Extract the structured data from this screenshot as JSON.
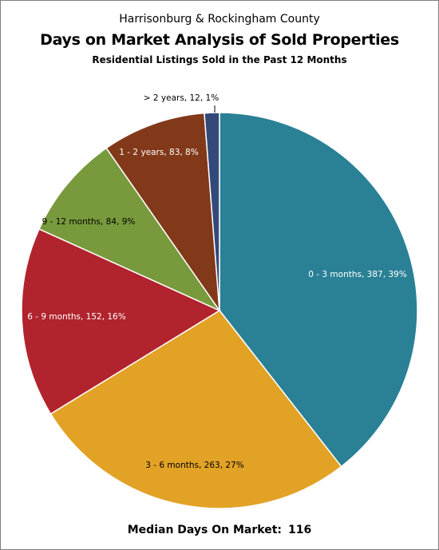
{
  "chart_data": {
    "type": "pie",
    "title": "Harrisonburg & Rockingham County",
    "subtitle": "Days on Market Analysis of Sold Properties",
    "subsubtitle": "Residential Listings Sold in the Past 12 Months",
    "slices": [
      {
        "label": "0 - 3 months, 387, 39%",
        "value": 387,
        "percent": 39,
        "color": "#2a8196"
      },
      {
        "label": "3 - 6 months, 263, 27%",
        "value": 263,
        "percent": 27,
        "color": "#e2a225"
      },
      {
        "label": "6 - 9 months, 152, 16%",
        "value": 152,
        "percent": 16,
        "color": "#b1232d"
      },
      {
        "label": "9 - 12 months, 84, 9%",
        "value": 84,
        "percent": 9,
        "color": "#789a3c"
      },
      {
        "label": "1 - 2 years, 83, 8%",
        "value": 83,
        "percent": 8,
        "color": "#82391a"
      },
      {
        "label": "> 2 years, 12, 1%",
        "value": 12,
        "percent": 1,
        "color": "#32497a"
      }
    ]
  },
  "footer": {
    "label": "Median Days On Market:",
    "value": "116"
  }
}
